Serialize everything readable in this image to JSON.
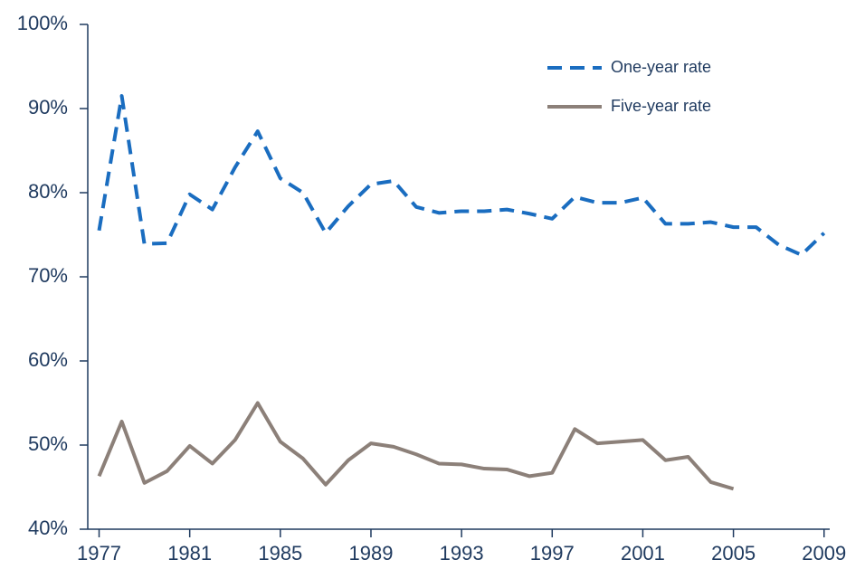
{
  "chart_data": {
    "type": "line",
    "x": [
      1977,
      1978,
      1979,
      1980,
      1981,
      1982,
      1983,
      1984,
      1985,
      1986,
      1987,
      1988,
      1989,
      1990,
      1991,
      1992,
      1993,
      1994,
      1995,
      1996,
      1997,
      1998,
      1999,
      2000,
      2001,
      2002,
      2003,
      2004,
      2005,
      2006,
      2007,
      2008,
      2009
    ],
    "series": [
      {
        "name": "One-year rate",
        "color": "#1a6dc0",
        "dashed": true,
        "values": [
          75.5,
          91.5,
          73.9,
          74,
          79.8,
          78,
          83,
          87.3,
          81.7,
          80,
          75.2,
          78.4,
          81,
          81.4,
          78.3,
          77.6,
          77.8,
          77.8,
          78,
          77.5,
          76.9,
          79.5,
          78.8,
          78.8,
          79.4,
          76.3,
          76.3,
          76.5,
          75.9,
          75.9,
          73.8,
          72.6,
          75.2
        ]
      },
      {
        "name": "Five-year rate",
        "color": "#8c8079",
        "dashed": false,
        "values": [
          46.3,
          52.8,
          45.5,
          46.9,
          49.9,
          47.8,
          50.6,
          55,
          50.4,
          48.4,
          45.3,
          48.2,
          50.2,
          49.8,
          48.9,
          47.8,
          47.7,
          47.2,
          47.1,
          46.3,
          46.7,
          51.9,
          50.2,
          50.4,
          50.6,
          48.2,
          48.6,
          45.6,
          44.8,
          null,
          null,
          null,
          null
        ]
      }
    ],
    "xlim": [
      1976.5,
      2009.25
    ],
    "xticks": [
      1977,
      1981,
      1985,
      1989,
      1993,
      1997,
      2001,
      2005,
      2009
    ],
    "ylim": [
      40,
      100
    ],
    "yticks": [
      {
        "value": 40,
        "label": "40%"
      },
      {
        "value": 50,
        "label": "50%"
      },
      {
        "value": 60,
        "label": "60%"
      },
      {
        "value": 70,
        "label": "70%"
      },
      {
        "value": 80,
        "label": "80%"
      },
      {
        "value": 90,
        "label": "90%"
      },
      {
        "value": 100,
        "label": "100%"
      }
    ],
    "legend": "upper right"
  }
}
